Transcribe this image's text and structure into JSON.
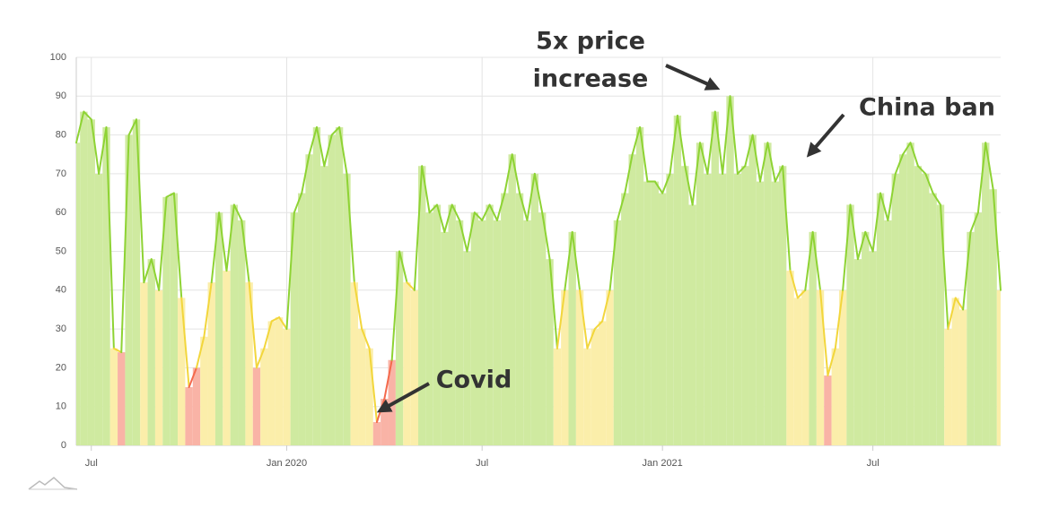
{
  "chart_data": {
    "type": "area",
    "categories": [
      null,
      null,
      "Jul",
      null,
      null,
      null,
      null,
      null,
      null,
      null,
      null,
      null,
      null,
      null,
      null,
      null,
      null,
      null,
      null,
      null,
      null,
      null,
      null,
      null,
      null,
      null,
      null,
      null,
      "Jan 2020",
      null,
      null,
      null,
      null,
      null,
      null,
      null,
      null,
      null,
      null,
      null,
      null,
      null,
      null,
      null,
      null,
      null,
      null,
      null,
      null,
      null,
      null,
      null,
      null,
      null,
      "Jul",
      null,
      null,
      null,
      null,
      null,
      null,
      null,
      null,
      null,
      null,
      null,
      null,
      null,
      null,
      null,
      null,
      null,
      null,
      null,
      null,
      null,
      null,
      null,
      "Jan 2021",
      null,
      null,
      null,
      null,
      null,
      null,
      null,
      null,
      null,
      null,
      null,
      null,
      null,
      null,
      null,
      null,
      null,
      null,
      null,
      null,
      null,
      null,
      null,
      null,
      null,
      null,
      null,
      "Jul",
      null,
      null,
      null,
      null,
      null,
      null,
      null,
      null,
      null,
      null,
      null,
      null,
      null,
      null,
      null,
      null,
      null
    ],
    "values": [
      78,
      86,
      84,
      70,
      82,
      25,
      24,
      80,
      84,
      42,
      48,
      40,
      64,
      65,
      38,
      15,
      20,
      28,
      42,
      60,
      45,
      62,
      58,
      42,
      20,
      25,
      32,
      33,
      30,
      60,
      65,
      75,
      82,
      72,
      80,
      82,
      70,
      42,
      30,
      25,
      6,
      12,
      22,
      50,
      42,
      40,
      72,
      60,
      62,
      55,
      62,
      58,
      50,
      60,
      58,
      62,
      58,
      65,
      75,
      65,
      58,
      70,
      60,
      48,
      25,
      40,
      55,
      40,
      25,
      30,
      32,
      40,
      58,
      65,
      75,
      82,
      68,
      68,
      65,
      70,
      85,
      72,
      62,
      78,
      70,
      86,
      70,
      90,
      70,
      72,
      80,
      68,
      78,
      68,
      72,
      45,
      38,
      40,
      55,
      40,
      18,
      25,
      40,
      62,
      48,
      55,
      50,
      65,
      58,
      70,
      75,
      78,
      72,
      70,
      65,
      62,
      30,
      38,
      35,
      55,
      60,
      78,
      66,
      40
    ],
    "ylim": [
      0,
      100
    ],
    "yticks": [
      0,
      10,
      20,
      30,
      40,
      50,
      60,
      70,
      80,
      90,
      100
    ],
    "grid": true,
    "color_zones": [
      {
        "below": 25,
        "line": "#f4694c",
        "fill": "#f9b3a6"
      },
      {
        "below": 46,
        "line": "#f2d63c",
        "fill": "#fbeeaa"
      },
      {
        "below": 101,
        "line": "#8ed334",
        "fill": "#cfeaa0"
      }
    ],
    "annotations": {
      "price": [
        "5x price",
        "increase"
      ],
      "china": "China ban",
      "covid": "Covid"
    }
  }
}
